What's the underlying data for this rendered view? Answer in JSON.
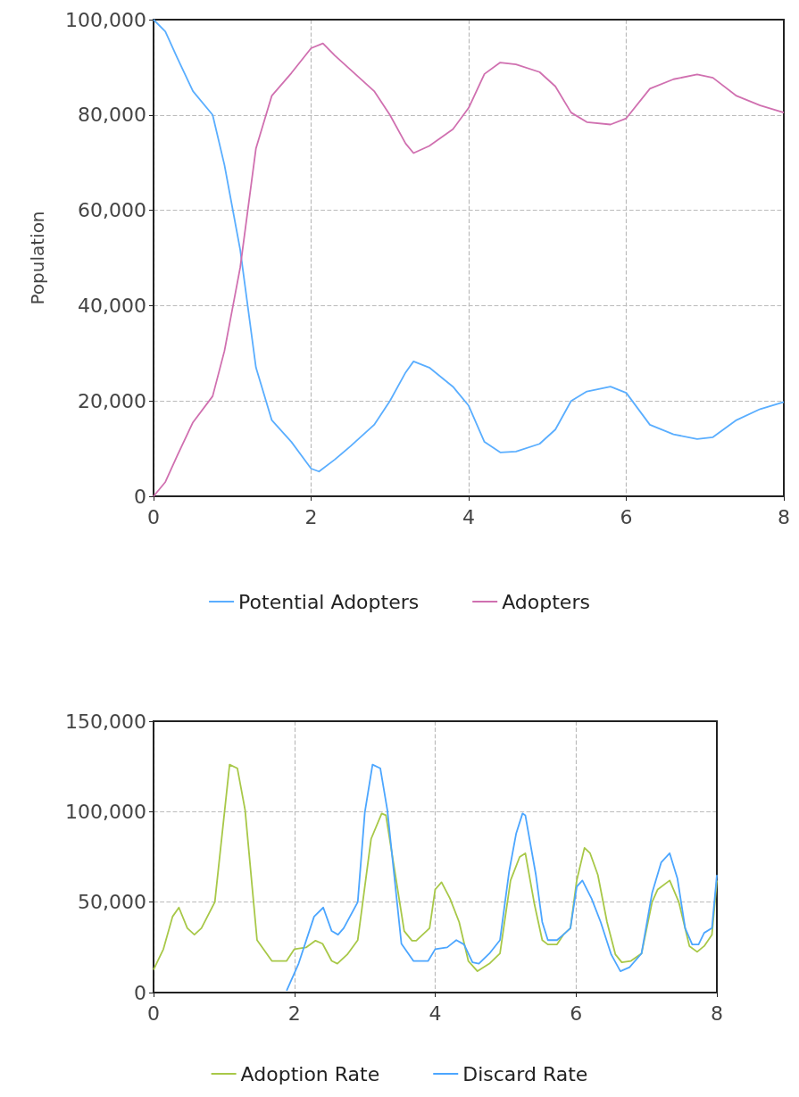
{
  "chart_data": [
    {
      "type": "line",
      "ylabel": "Population",
      "xlim": [
        0,
        8
      ],
      "xticks": [
        0,
        2,
        4,
        6,
        8
      ],
      "ylim": [
        0,
        100000
      ],
      "yticks": [
        0,
        {
          "value": 20000,
          "label": "20,000"
        },
        {
          "value": 40000,
          "label": "40,000"
        },
        {
          "value": 60000,
          "label": "60,000"
        },
        {
          "value": 80000,
          "label": "80,000"
        },
        {
          "value": 100000,
          "label": "100,000"
        }
      ],
      "grid": true,
      "legend": "bottom",
      "line_style": "solid",
      "marker": "none",
      "series": [
        {
          "name": "Potential Adopters",
          "color": "#5aaeff",
          "x": [
            0,
            0.15,
            0.3,
            0.5,
            0.75,
            0.9,
            1.1,
            1.3,
            1.5,
            1.75,
            2.0,
            2.1,
            2.3,
            2.5,
            2.8,
            3.0,
            3.2,
            3.3,
            3.5,
            3.8,
            4.0,
            4.2,
            4.4,
            4.6,
            4.9,
            5.1,
            5.3,
            5.5,
            5.8,
            6.0,
            6.3,
            6.6,
            6.9,
            7.1,
            7.4,
            7.7,
            8.0
          ],
          "values": [
            100000,
            97500,
            92000,
            85000,
            80000,
            69500,
            51700,
            27000,
            16000,
            11400,
            5800,
            5200,
            7700,
            10500,
            15000,
            20000,
            26000,
            28300,
            27000,
            23000,
            19000,
            11400,
            9200,
            9400,
            11000,
            14000,
            20000,
            22000,
            23000,
            21700,
            15000,
            13000,
            12000,
            12400,
            16000,
            18300,
            19800
          ]
        },
        {
          "name": "Adopters",
          "color": "#d070b0",
          "x": [
            0,
            0.15,
            0.3,
            0.5,
            0.75,
            0.9,
            1.1,
            1.3,
            1.5,
            1.75,
            2.0,
            2.15,
            2.3,
            2.5,
            2.8,
            3.0,
            3.2,
            3.3,
            3.5,
            3.8,
            4.0,
            4.2,
            4.4,
            4.6,
            4.9,
            5.1,
            5.3,
            5.5,
            5.8,
            6.0,
            6.3,
            6.6,
            6.9,
            7.1,
            7.4,
            7.7,
            8.0
          ],
          "values": [
            0,
            3000,
            8500,
            15500,
            21000,
            30500,
            48000,
            73000,
            84000,
            88800,
            94000,
            95000,
            92500,
            89500,
            85000,
            80000,
            74000,
            72000,
            73500,
            77000,
            81500,
            88600,
            91000,
            90600,
            89000,
            86000,
            80500,
            78500,
            78000,
            79300,
            85500,
            87500,
            88500,
            87800,
            84000,
            82000,
            80500
          ]
        }
      ]
    },
    {
      "type": "line",
      "xlim": [
        0,
        8
      ],
      "xticks": [
        0,
        2,
        4,
        6,
        8
      ],
      "ylim": [
        0,
        150000
      ],
      "yticks": [
        0,
        {
          "value": 50000,
          "label": "50,000"
        },
        {
          "value": 100000,
          "label": "100,000"
        },
        {
          "value": 150000,
          "label": "150,000"
        }
      ],
      "grid": true,
      "legend": "bottom",
      "line_style": "solid",
      "marker": "none",
      "series": [
        {
          "name": "Adoption Rate",
          "color": "#a8c848",
          "x": [
            0,
            0.14,
            0.27,
            0.36,
            0.48,
            0.58,
            0.68,
            0.87,
            1.08,
            1.19,
            1.3,
            1.47,
            1.68,
            1.89,
            2.0,
            2.17,
            2.3,
            2.4,
            2.53,
            2.61,
            2.75,
            2.9,
            3.09,
            3.24,
            3.3,
            3.56,
            3.67,
            3.73,
            3.92,
            4.0,
            4.09,
            4.21,
            4.34,
            4.47,
            4.6,
            4.77,
            4.92,
            5.07,
            5.2,
            5.28,
            5.41,
            5.52,
            5.6,
            5.73,
            5.82,
            5.92,
            6.01,
            6.12,
            6.2,
            6.31,
            6.44,
            6.56,
            6.65,
            6.78,
            6.93,
            7.08,
            7.16,
            7.33,
            7.46,
            7.61,
            7.72,
            7.82,
            7.93,
            8.0
          ],
          "values": [
            12600,
            24000,
            42000,
            47000,
            35600,
            32000,
            35600,
            50000,
            126000,
            124000,
            101000,
            29000,
            17500,
            17500,
            24000,
            25000,
            28700,
            27000,
            17500,
            16000,
            21000,
            29000,
            85000,
            99000,
            98000,
            34000,
            28700,
            28700,
            35600,
            57000,
            61000,
            52000,
            39000,
            17500,
            11800,
            16000,
            21600,
            62000,
            75000,
            77000,
            48700,
            29000,
            26600,
            26600,
            32000,
            35600,
            62000,
            80000,
            77000,
            65000,
            39000,
            21000,
            16700,
            17500,
            21600,
            50000,
            57000,
            62000,
            50000,
            25700,
            22500,
            25700,
            32000,
            62000
          ]
        },
        {
          "name": "Discard Rate",
          "color": "#4ca6ff",
          "x": [
            1.89,
            2.06,
            2.28,
            2.41,
            2.53,
            2.62,
            2.7,
            2.9,
            3.0,
            3.11,
            3.22,
            3.32,
            3.52,
            3.69,
            3.9,
            4.0,
            4.17,
            4.3,
            4.41,
            4.53,
            4.62,
            4.77,
            4.92,
            5.05,
            5.15,
            5.24,
            5.28,
            5.43,
            5.52,
            5.6,
            5.73,
            5.82,
            5.92,
            6.01,
            6.09,
            6.22,
            6.35,
            6.5,
            6.63,
            6.76,
            6.93,
            7.08,
            7.21,
            7.33,
            7.44,
            7.55,
            7.65,
            7.74,
            7.82,
            7.93,
            8.0
          ],
          "values": [
            1000,
            16000,
            42000,
            47000,
            34000,
            32000,
            35600,
            50000,
            99500,
            126000,
            124000,
            101000,
            27000,
            17500,
            17500,
            24000,
            25000,
            29000,
            26600,
            16700,
            16000,
            21600,
            29000,
            67000,
            88000,
            99000,
            98000,
            65000,
            39000,
            29000,
            29000,
            32000,
            35600,
            58500,
            62000,
            52000,
            39000,
            21000,
            11800,
            14000,
            21600,
            55000,
            72000,
            77000,
            63000,
            35600,
            26600,
            26600,
            33000,
            35600,
            65000
          ]
        }
      ]
    }
  ]
}
